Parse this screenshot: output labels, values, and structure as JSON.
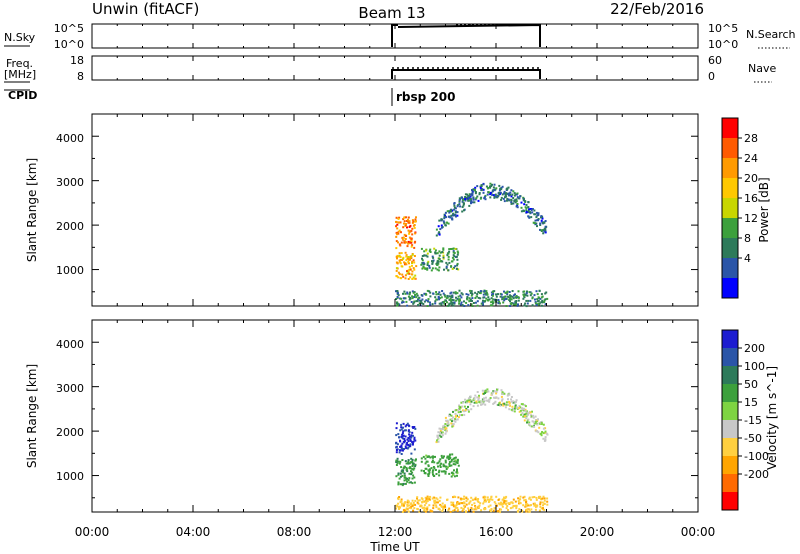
{
  "header": {
    "station": "Unwin (fitACF)",
    "beam": "Beam 13",
    "date": "22/Feb/2016"
  },
  "strips": {
    "nsky": {
      "label": "N.Sky",
      "ticks": [
        "10^5",
        "10^0"
      ],
      "right_ticks": [
        "10^5",
        "10^0"
      ],
      "right_label": "N.Search"
    },
    "freq": {
      "label_line1": "Freq.",
      "label_line2": "[MHz]",
      "ticks": [
        "18",
        "8"
      ],
      "right_ticks": [
        "60",
        "0"
      ],
      "right_label": "Nave"
    },
    "cpid": {
      "label": "CPID",
      "mode_text": "rbsp 200"
    }
  },
  "panels": {
    "power": {
      "ylabel": "Slant Range [km]",
      "yticks": [
        "4000",
        "3000",
        "2000",
        "1000"
      ]
    },
    "velocity": {
      "ylabel": "Slant Range [km]",
      "yticks": [
        "4000",
        "3000",
        "2000",
        "1000"
      ]
    }
  },
  "xaxis": {
    "ticks": [
      "00:00",
      "04:00",
      "08:00",
      "12:00",
      "16:00",
      "20:00",
      "00:00"
    ],
    "label": "Time UT"
  },
  "colorbars": {
    "power": {
      "label": "Power [dB]",
      "ticks": [
        "28",
        "24",
        "20",
        "16",
        "12",
        "8",
        "4"
      ],
      "colors": [
        "#ff0000",
        "#ff5a00",
        "#ff9a00",
        "#ffc800",
        "#c8d600",
        "#3ca03c",
        "#2d7a5a",
        "#2a55a8",
        "#0000ff"
      ]
    },
    "velocity": {
      "label": "Velocity [m s^-1]",
      "ticks": [
        "200",
        "100",
        "50",
        "15",
        "-15",
        "-50",
        "-100",
        "-200"
      ],
      "colors": [
        "#1c1cd0",
        "#2a55a8",
        "#2d7a5a",
        "#3ca03c",
        "#7ed442",
        "#c8c8c8",
        "#ffd040",
        "#ffa500",
        "#ff6a00",
        "#ff0000"
      ]
    }
  },
  "chart_data": [
    {
      "type": "line",
      "title": "N.Sky / N.Search",
      "x_units": "hours UT",
      "x": [
        12.0,
        18.0
      ],
      "note_range": "data present 12:00-18:00",
      "series": [
        {
          "name": "N.Sky",
          "values": [
            100000,
            100000
          ]
        }
      ]
    },
    {
      "type": "line",
      "title": "Freq. / Nave",
      "x_units": "hours UT",
      "x": [
        12.0,
        18.0
      ],
      "series": [
        {
          "name": "Freq.",
          "values": [
            11,
            11
          ]
        }
      ]
    },
    {
      "type": "heatmap",
      "title": "Power",
      "x_units": "hours UT",
      "y_units": "km",
      "xlim": [
        0,
        24
      ],
      "ylim": [
        180,
        4500
      ],
      "clusters": [
        {
          "t": [
            12.0,
            12.8
          ],
          "r": [
            1500,
            2200
          ],
          "v": 26
        },
        {
          "t": [
            12.0,
            12.8
          ],
          "r": [
            800,
            1400
          ],
          "v": 22
        },
        {
          "t": [
            13.0,
            14.5
          ],
          "r": [
            1000,
            1500
          ],
          "v": 10
        },
        {
          "t": [
            13.6,
            18.0
          ],
          "r": [
            1800,
            3000
          ],
          "v": 6
        },
        {
          "t": [
            12.0,
            18.0
          ],
          "r": [
            200,
            550
          ],
          "v": 8
        }
      ]
    },
    {
      "type": "heatmap",
      "title": "Velocity",
      "x_units": "hours UT",
      "y_units": "km",
      "xlim": [
        0,
        24
      ],
      "ylim": [
        180,
        4500
      ],
      "clusters": [
        {
          "t": [
            12.0,
            12.8
          ],
          "r": [
            1500,
            2200
          ],
          "v": 210
        },
        {
          "t": [
            12.0,
            12.8
          ],
          "r": [
            800,
            1400
          ],
          "v": 40
        },
        {
          "t": [
            13.0,
            14.5
          ],
          "r": [
            1000,
            1500
          ],
          "v": 30
        },
        {
          "t": [
            13.6,
            18.0
          ],
          "r": [
            1800,
            3000
          ],
          "v": 0
        },
        {
          "t": [
            12.0,
            18.0
          ],
          "r": [
            200,
            550
          ],
          "v": -40
        }
      ]
    }
  ]
}
